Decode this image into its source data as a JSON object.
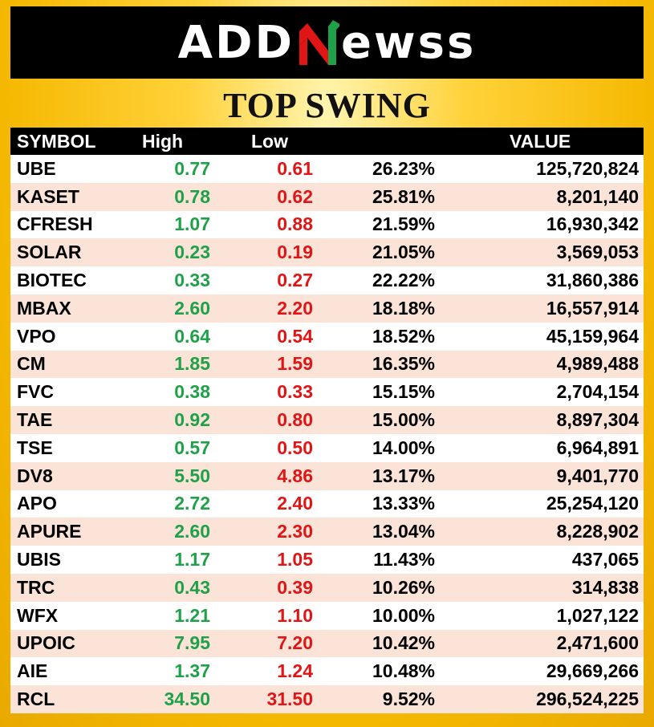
{
  "logo": {
    "left": "ADD",
    "right": "ewss"
  },
  "title": "TOP SWING",
  "columns": {
    "symbol": "SYMBOL",
    "high": "High",
    "low": "Low",
    "pct": "",
    "value": "VALUE"
  },
  "colors": {
    "high": "#1fa14a",
    "low": "#e01515",
    "row_alt": "#fbe3d8",
    "header_bg": "#000000"
  },
  "rows": [
    {
      "symbol": "UBE",
      "high": "0.77",
      "low": "0.61",
      "pct": "26.23%",
      "value": "125,720,824"
    },
    {
      "symbol": "KASET",
      "high": "0.78",
      "low": "0.62",
      "pct": "25.81%",
      "value": "8,201,140"
    },
    {
      "symbol": "CFRESH",
      "high": "1.07",
      "low": "0.88",
      "pct": "21.59%",
      "value": "16,930,342"
    },
    {
      "symbol": "SOLAR",
      "high": "0.23",
      "low": "0.19",
      "pct": "21.05%",
      "value": "3,569,053"
    },
    {
      "symbol": "BIOTEC",
      "high": "0.33",
      "low": "0.27",
      "pct": "22.22%",
      "value": "31,860,386"
    },
    {
      "symbol": "MBAX",
      "high": "2.60",
      "low": "2.20",
      "pct": "18.18%",
      "value": "16,557,914"
    },
    {
      "symbol": "VPO",
      "high": "0.64",
      "low": "0.54",
      "pct": "18.52%",
      "value": "45,159,964"
    },
    {
      "symbol": "CM",
      "high": "1.85",
      "low": "1.59",
      "pct": "16.35%",
      "value": "4,989,488"
    },
    {
      "symbol": "FVC",
      "high": "0.38",
      "low": "0.33",
      "pct": "15.15%",
      "value": "2,704,154"
    },
    {
      "symbol": "TAE",
      "high": "0.92",
      "low": "0.80",
      "pct": "15.00%",
      "value": "8,897,304"
    },
    {
      "symbol": "TSE",
      "high": "0.57",
      "low": "0.50",
      "pct": "14.00%",
      "value": "6,964,891"
    },
    {
      "symbol": "DV8",
      "high": "5.50",
      "low": "4.86",
      "pct": "13.17%",
      "value": "9,401,770"
    },
    {
      "symbol": "APO",
      "high": "2.72",
      "low": "2.40",
      "pct": "13.33%",
      "value": "25,254,120"
    },
    {
      "symbol": "APURE",
      "high": "2.60",
      "low": "2.30",
      "pct": "13.04%",
      "value": "8,228,902"
    },
    {
      "symbol": "UBIS",
      "high": "1.17",
      "low": "1.05",
      "pct": "11.43%",
      "value": "437,065"
    },
    {
      "symbol": "TRC",
      "high": "0.43",
      "low": "0.39",
      "pct": "10.26%",
      "value": "314,838"
    },
    {
      "symbol": "WFX",
      "high": "1.21",
      "low": "1.10",
      "pct": "10.00%",
      "value": "1,027,122"
    },
    {
      "symbol": "UPOIC",
      "high": "7.95",
      "low": "7.20",
      "pct": "10.42%",
      "value": "2,471,600"
    },
    {
      "symbol": "AIE",
      "high": "1.37",
      "low": "1.24",
      "pct": "10.48%",
      "value": "29,669,266"
    },
    {
      "symbol": "RCL",
      "high": "34.50",
      "low": "31.50",
      "pct": "9.52%",
      "value": "296,524,225"
    }
  ]
}
